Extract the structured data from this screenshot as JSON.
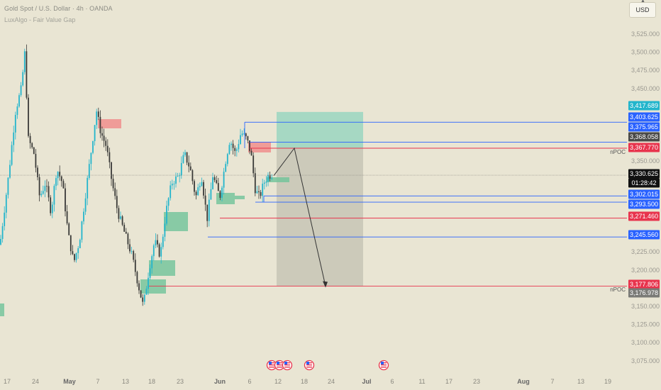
{
  "header": {
    "title": "Gold Spot / U.S. Dollar · 4h · OANDA",
    "indicator": "LuxAlgo - Fair Value Gap",
    "currency_label": "USD"
  },
  "price_axis": {
    "ticks": [
      "3,525.000",
      "3,500.000",
      "3,475.000",
      "3,450.000",
      "3,350.000",
      "3,225.000",
      "3,200.000",
      "3,150.000",
      "3,125.000",
      "3,100.000",
      "3,075.000"
    ]
  },
  "price_labels": [
    {
      "text": "3,417.689",
      "color": "#22b5cc"
    },
    {
      "text": "3,403.625",
      "color": "#2962ff"
    },
    {
      "text": "3,375.965",
      "color": "#2962ff"
    },
    {
      "text": "3,368.058",
      "color": "#4a4a48"
    },
    {
      "text": "3,367.770",
      "color": "#e8344d"
    },
    {
      "text": "3,330.625",
      "color": "#111111"
    },
    {
      "text": "01:28:42",
      "color": "#111111"
    },
    {
      "text": "3,302.015",
      "color": "#2962ff"
    },
    {
      "text": "3,293.500",
      "color": "#2962ff"
    },
    {
      "text": "3,271.460",
      "color": "#e8344d"
    },
    {
      "text": "3,245.560",
      "color": "#2962ff"
    },
    {
      "text": "3,177.806",
      "color": "#e8344d"
    },
    {
      "text": "3,176.978",
      "color": "#7a7a76"
    }
  ],
  "annotations": [
    "nPOC",
    "nPOC"
  ],
  "time_axis": {
    "ticks": [
      "17",
      "24",
      "May",
      "7",
      "13",
      "18",
      "23",
      "Jun",
      "6",
      "12",
      "18",
      "24",
      "Jul",
      "6",
      "11",
      "17",
      "23",
      "Aug",
      "7",
      "13",
      "19"
    ]
  },
  "colors": {
    "background": "#e9e5d3",
    "up": "#22b5cc",
    "down": "#3a3a38",
    "fvg_bull": "#6fc39a",
    "fvg_bear": "#f08a8a",
    "level_blue": "#2962ff",
    "level_red": "#e8344d",
    "target_zone": "#8fd3bd",
    "stop_zone": "#c2c0b2"
  },
  "icons": [
    "us-flag-icon",
    "us-flag-icon",
    "us-flag-icon",
    "us-flag-icon",
    "us-flag-icon"
  ]
}
